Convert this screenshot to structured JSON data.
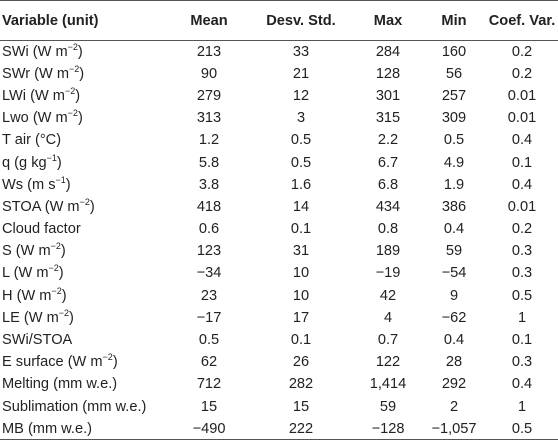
{
  "table": {
    "headers": {
      "variable": "Variable (unit)",
      "mean": "Mean",
      "std": "Desv. Std.",
      "max": "Max",
      "min": "Min",
      "cv": "Coef. Var."
    },
    "rows": [
      {
        "name": "SWi (W m",
        "sup": "−2",
        "close": ")",
        "mean": "213",
        "std": "33",
        "max": "284",
        "min": "160",
        "cv": "0.2"
      },
      {
        "name": "SWr (W m",
        "sup": "−2",
        "close": ")",
        "mean": "90",
        "std": "21",
        "max": "128",
        "min": "56",
        "cv": "0.2"
      },
      {
        "name": "LWi (W m",
        "sup": "−2",
        "close": ")",
        "mean": "279",
        "std": "12",
        "max": "301",
        "min": "257",
        "cv": "0.01"
      },
      {
        "name": "Lwo (W m",
        "sup": "−2",
        "close": ")",
        "mean": "313",
        "std": "3",
        "max": "315",
        "min": "309",
        "cv": "0.01"
      },
      {
        "name": "T air (°C)",
        "sup": "",
        "close": "",
        "mean": "1.2",
        "std": "0.5",
        "max": "2.2",
        "min": "0.5",
        "cv": "0.4"
      },
      {
        "name": "q (g kg",
        "sup": "−1",
        "close": ")",
        "mean": "5.8",
        "std": "0.5",
        "max": "6.7",
        "min": "4.9",
        "cv": "0.1"
      },
      {
        "name": "Ws (m s",
        "sup": "−1",
        "close": ")",
        "mean": "3.8",
        "std": "1.6",
        "max": "6.8",
        "min": "1.9",
        "cv": "0.4"
      },
      {
        "name": "STOA (W m",
        "sup": "−2",
        "close": ")",
        "mean": "418",
        "std": "14",
        "max": "434",
        "min": "386",
        "cv": "0.01"
      },
      {
        "name": "Cloud factor",
        "sup": "",
        "close": "",
        "mean": "0.6",
        "std": "0.1",
        "max": "0.8",
        "min": "0.4",
        "cv": "0.2"
      },
      {
        "name": "S (W m",
        "sup": "−2",
        "close": ")",
        "mean": "123",
        "std": "31",
        "max": "189",
        "min": "59",
        "cv": "0.3"
      },
      {
        "name": "L (W m",
        "sup": "−2",
        "close": ")",
        "mean": "−34",
        "std": "10",
        "max": "−19",
        "min": "−54",
        "cv": "0.3"
      },
      {
        "name": "H (W m",
        "sup": "−2",
        "close": ")",
        "mean": "23",
        "std": "10",
        "max": "42",
        "min": "9",
        "cv": "0.5"
      },
      {
        "name": "LE (W m",
        "sup": "−2",
        "close": ")",
        "mean": "−17",
        "std": "17",
        "max": "4",
        "min": "−62",
        "cv": "1"
      },
      {
        "name": "SWi/STOA",
        "sup": "",
        "close": "",
        "mean": "0.5",
        "std": "0.1",
        "max": "0.7",
        "min": "0.4",
        "cv": "0.1"
      },
      {
        "name": "E surface (W m",
        "sup": "−2",
        "close": ")",
        "mean": "62",
        "std": "26",
        "max": "122",
        "min": "28",
        "cv": "0.3"
      },
      {
        "name": "Melting (mm w.e.)",
        "sup": "",
        "close": "",
        "mean": "712",
        "std": "282",
        "max": "1,414",
        "min": "292",
        "cv": "0.4"
      },
      {
        "name": "Sublimation (mm w.e.)",
        "sup": "",
        "close": "",
        "mean": "15",
        "std": "15",
        "max": "59",
        "min": "2",
        "cv": "1"
      },
      {
        "name": "MB (mm w.e.)",
        "sup": "",
        "close": "",
        "mean": "−490",
        "std": "222",
        "max": "−128",
        "min": "−1,057",
        "cv": "0.5"
      }
    ]
  }
}
